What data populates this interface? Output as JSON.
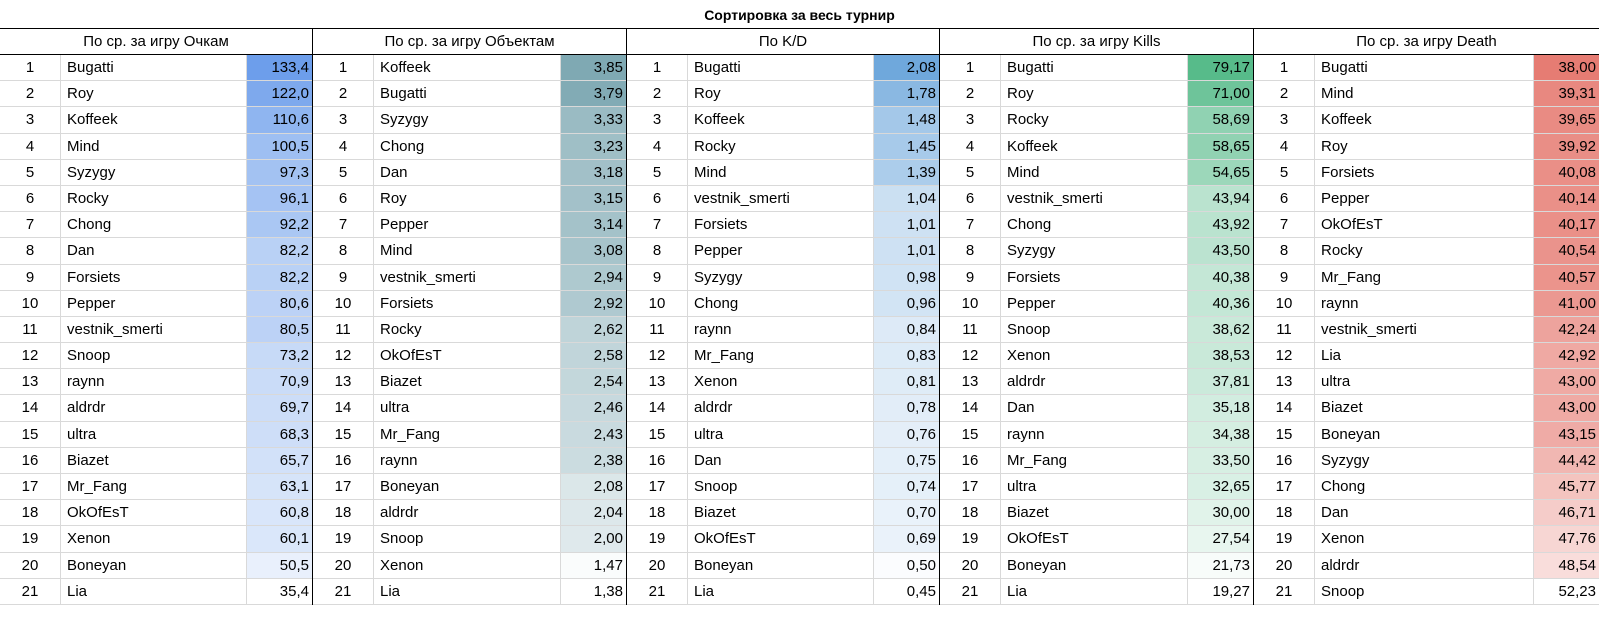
{
  "title": "Сортировка за весь турнир",
  "groups": [
    {
      "header": "По ср. за игру Очкам",
      "color": "#6d9eeb",
      "rows": [
        [
          "1",
          "Bugatti",
          "133,4"
        ],
        [
          "2",
          "Roy",
          "122,0"
        ],
        [
          "3",
          "Koffeek",
          "110,6"
        ],
        [
          "4",
          "Mind",
          "100,5"
        ],
        [
          "5",
          "Syzygy",
          "97,3"
        ],
        [
          "6",
          "Rocky",
          "96,1"
        ],
        [
          "7",
          "Chong",
          "92,2"
        ],
        [
          "8",
          "Dan",
          "82,2"
        ],
        [
          "9",
          "Forsiets",
          "82,2"
        ],
        [
          "10",
          "Pepper",
          "80,6"
        ],
        [
          "11",
          "vestnik_smerti",
          "80,5"
        ],
        [
          "12",
          "Snoop",
          "73,2"
        ],
        [
          "13",
          "raynn",
          "70,9"
        ],
        [
          "14",
          "aldrdr",
          "69,7"
        ],
        [
          "15",
          "ultra",
          "68,3"
        ],
        [
          "16",
          "Biazet",
          "65,7"
        ],
        [
          "17",
          "Mr_Fang",
          "63,1"
        ],
        [
          "18",
          "OkOfEsT",
          "60,8"
        ],
        [
          "19",
          "Xenon",
          "60,1"
        ],
        [
          "20",
          "Boneyan",
          "50,5"
        ],
        [
          "21",
          "Lia",
          "35,4"
        ]
      ]
    },
    {
      "header": "По ср. за игру Объектам",
      "color": "#7fa9b3",
      "rows": [
        [
          "1",
          "Koffeek",
          "3,85"
        ],
        [
          "2",
          "Bugatti",
          "3,79"
        ],
        [
          "3",
          "Syzygy",
          "3,33"
        ],
        [
          "4",
          "Chong",
          "3,23"
        ],
        [
          "5",
          "Dan",
          "3,18"
        ],
        [
          "6",
          "Roy",
          "3,15"
        ],
        [
          "7",
          "Pepper",
          "3,14"
        ],
        [
          "8",
          "Mind",
          "3,08"
        ],
        [
          "9",
          "vestnik_smerti",
          "2,94"
        ],
        [
          "10",
          "Forsiets",
          "2,92"
        ],
        [
          "11",
          "Rocky",
          "2,62"
        ],
        [
          "12",
          "OkOfEsT",
          "2,58"
        ],
        [
          "13",
          "Biazet",
          "2,54"
        ],
        [
          "14",
          "ultra",
          "2,46"
        ],
        [
          "15",
          "Mr_Fang",
          "2,43"
        ],
        [
          "16",
          "raynn",
          "2,38"
        ],
        [
          "17",
          "Boneyan",
          "2,08"
        ],
        [
          "18",
          "aldrdr",
          "2,04"
        ],
        [
          "19",
          "Snoop",
          "2,00"
        ],
        [
          "20",
          "Xenon",
          "1,47"
        ],
        [
          "21",
          "Lia",
          "1,38"
        ]
      ]
    },
    {
      "header": "По K/D",
      "color": "#6fa8dc",
      "rows": [
        [
          "1",
          "Bugatti",
          "2,08"
        ],
        [
          "2",
          "Roy",
          "1,78"
        ],
        [
          "3",
          "Koffeek",
          "1,48"
        ],
        [
          "4",
          "Rocky",
          "1,45"
        ],
        [
          "5",
          "Mind",
          "1,39"
        ],
        [
          "6",
          "vestnik_smerti",
          "1,04"
        ],
        [
          "7",
          "Forsiets",
          "1,01"
        ],
        [
          "8",
          "Pepper",
          "1,01"
        ],
        [
          "9",
          "Syzygy",
          "0,98"
        ],
        [
          "10",
          "Chong",
          "0,96"
        ],
        [
          "11",
          "raynn",
          "0,84"
        ],
        [
          "12",
          "Mr_Fang",
          "0,83"
        ],
        [
          "13",
          "Xenon",
          "0,81"
        ],
        [
          "14",
          "aldrdr",
          "0,78"
        ],
        [
          "15",
          "ultra",
          "0,76"
        ],
        [
          "16",
          "Dan",
          "0,75"
        ],
        [
          "17",
          "Snoop",
          "0,74"
        ],
        [
          "18",
          "Biazet",
          "0,70"
        ],
        [
          "19",
          "OkOfEsT",
          "0,69"
        ],
        [
          "20",
          "Boneyan",
          "0,50"
        ],
        [
          "21",
          "Lia",
          "0,45"
        ]
      ]
    },
    {
      "header": "По ср. за игру Kills",
      "color": "#57bb8a",
      "rows": [
        [
          "1",
          "Bugatti",
          "79,17"
        ],
        [
          "2",
          "Roy",
          "71,00"
        ],
        [
          "3",
          "Rocky",
          "58,69"
        ],
        [
          "4",
          "Koffeek",
          "58,65"
        ],
        [
          "5",
          "Mind",
          "54,65"
        ],
        [
          "6",
          "vestnik_smerti",
          "43,94"
        ],
        [
          "7",
          "Chong",
          "43,92"
        ],
        [
          "8",
          "Syzygy",
          "43,50"
        ],
        [
          "9",
          "Forsiets",
          "40,38"
        ],
        [
          "10",
          "Pepper",
          "40,36"
        ],
        [
          "11",
          "Snoop",
          "38,62"
        ],
        [
          "12",
          "Xenon",
          "38,53"
        ],
        [
          "13",
          "aldrdr",
          "37,81"
        ],
        [
          "14",
          "Dan",
          "35,18"
        ],
        [
          "15",
          "raynn",
          "34,38"
        ],
        [
          "16",
          "Mr_Fang",
          "33,50"
        ],
        [
          "17",
          "ultra",
          "32,65"
        ],
        [
          "18",
          "Biazet",
          "30,00"
        ],
        [
          "19",
          "OkOfEsT",
          "27,54"
        ],
        [
          "20",
          "Boneyan",
          "21,73"
        ],
        [
          "21",
          "Lia",
          "19,27"
        ]
      ]
    },
    {
      "header": "По ср. за игру Death",
      "color": "#e67c73",
      "rows": [
        [
          "1",
          "Bugatti",
          "38,00"
        ],
        [
          "2",
          "Mind",
          "39,31"
        ],
        [
          "3",
          "Koffeek",
          "39,65"
        ],
        [
          "4",
          "Roy",
          "39,92"
        ],
        [
          "5",
          "Forsiets",
          "40,08"
        ],
        [
          "6",
          "Pepper",
          "40,14"
        ],
        [
          "7",
          "OkOfEsT",
          "40,17"
        ],
        [
          "8",
          "Rocky",
          "40,54"
        ],
        [
          "9",
          "Mr_Fang",
          "40,57"
        ],
        [
          "10",
          "raynn",
          "41,00"
        ],
        [
          "11",
          "vestnik_smerti",
          "42,24"
        ],
        [
          "12",
          "Lia",
          "42,92"
        ],
        [
          "13",
          "ultra",
          "43,00"
        ],
        [
          "14",
          "Biazet",
          "43,00"
        ],
        [
          "15",
          "Boneyan",
          "43,15"
        ],
        [
          "16",
          "Syzygy",
          "44,42"
        ],
        [
          "17",
          "Chong",
          "45,77"
        ],
        [
          "18",
          "Dan",
          "46,71"
        ],
        [
          "19",
          "Xenon",
          "47,76"
        ],
        [
          "20",
          "aldrdr",
          "48,54"
        ],
        [
          "21",
          "Snoop",
          "52,23"
        ]
      ]
    }
  ]
}
